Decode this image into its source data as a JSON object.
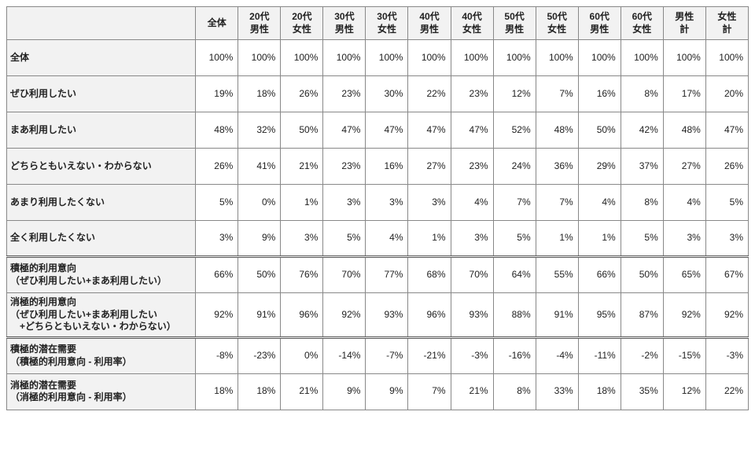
{
  "table": {
    "type": "table",
    "background_color": "#ffffff",
    "header_bg": "#f2f2f2",
    "border_color": "#888888",
    "text_color": "#222222",
    "font_size_pt": 9,
    "columns": [
      "",
      "全体",
      "20代\n男性",
      "20代\n女性",
      "30代\n男性",
      "30代\n女性",
      "40代\n男性",
      "40代\n女性",
      "50代\n男性",
      "50代\n女性",
      "60代\n男性",
      "60代\n女性",
      "男性\n計",
      "女性\n計"
    ],
    "rows": [
      {
        "label": "全体",
        "vals": [
          "100%",
          "100%",
          "100%",
          "100%",
          "100%",
          "100%",
          "100%",
          "100%",
          "100%",
          "100%",
          "100%",
          "100%",
          "100%"
        ]
      },
      {
        "label": "ぜひ利用したい",
        "vals": [
          "19%",
          "18%",
          "26%",
          "23%",
          "30%",
          "22%",
          "23%",
          "12%",
          "7%",
          "16%",
          "8%",
          "17%",
          "20%"
        ]
      },
      {
        "label": "まあ利用したい",
        "vals": [
          "48%",
          "32%",
          "50%",
          "47%",
          "47%",
          "47%",
          "47%",
          "52%",
          "48%",
          "50%",
          "42%",
          "48%",
          "47%"
        ]
      },
      {
        "label": "どちらともいえない・わからない",
        "vals": [
          "26%",
          "41%",
          "21%",
          "23%",
          "16%",
          "27%",
          "23%",
          "24%",
          "36%",
          "29%",
          "37%",
          "27%",
          "26%"
        ]
      },
      {
        "label": "あまり利用したくない",
        "vals": [
          "5%",
          "0%",
          "1%",
          "3%",
          "3%",
          "3%",
          "4%",
          "7%",
          "7%",
          "4%",
          "8%",
          "4%",
          "5%"
        ]
      },
      {
        "label": "全く利用したくない",
        "vals": [
          "3%",
          "9%",
          "3%",
          "5%",
          "4%",
          "1%",
          "3%",
          "5%",
          "1%",
          "1%",
          "5%",
          "3%",
          "3%"
        ]
      },
      {
        "label": "積極的利用意向\n（ぜひ利用したい+まあ利用したい）",
        "vals": [
          "66%",
          "50%",
          "76%",
          "70%",
          "77%",
          "68%",
          "70%",
          "64%",
          "55%",
          "66%",
          "50%",
          "65%",
          "67%"
        ],
        "sep": true
      },
      {
        "label": "消極的利用意向\n（ぜひ利用したい+まあ利用したい\n　+どちらともいえない・わからない）",
        "vals": [
          "92%",
          "91%",
          "96%",
          "92%",
          "93%",
          "96%",
          "93%",
          "88%",
          "91%",
          "95%",
          "87%",
          "92%",
          "92%"
        ]
      },
      {
        "label": "積極的潜在需要\n（積極的利用意向 - 利用率）",
        "vals": [
          "-8%",
          "-23%",
          "0%",
          "-14%",
          "-7%",
          "-21%",
          "-3%",
          "-16%",
          "-4%",
          "-11%",
          "-2%",
          "-15%",
          "-3%"
        ],
        "sep": true
      },
      {
        "label": "消極的潜在需要\n（消極的利用意向 - 利用率）",
        "vals": [
          "18%",
          "18%",
          "21%",
          "9%",
          "9%",
          "7%",
          "21%",
          "8%",
          "33%",
          "18%",
          "35%",
          "12%",
          "22%"
        ]
      }
    ]
  }
}
